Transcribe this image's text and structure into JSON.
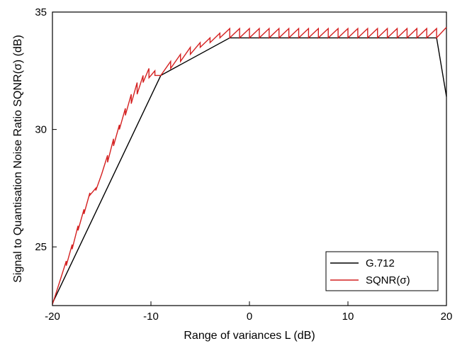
{
  "chart_data": {
    "type": "line",
    "xlabel": "Range of variances L (dB)",
    "ylabel": "Signal to Quantisation Noise Ratio SQNR(σ) (dB)",
    "xlim": [
      -20,
      20
    ],
    "ylim": [
      22.5,
      35
    ],
    "x_ticks": [
      -20,
      -10,
      0,
      10,
      20
    ],
    "y_ticks": [
      25,
      30,
      35
    ],
    "grid": false,
    "legend_position": "bottom-right",
    "series": [
      {
        "name": "G.712",
        "color": "#000000",
        "x": [
          -20,
          -9,
          -2,
          19,
          20
        ],
        "y": [
          22.6,
          32.3,
          33.9,
          33.9,
          31.4
        ]
      },
      {
        "name": "SQNR(σ)",
        "color": "#d42020",
        "x": [
          -20,
          -19.2,
          -18.6,
          -18.6,
          -18.0,
          -18.0,
          -17.4,
          -17.4,
          -16.8,
          -16.8,
          -16.2,
          -16.2,
          -15.6,
          -15.6,
          -15.0,
          -14.4,
          -14.4,
          -13.8,
          -13.8,
          -13.2,
          -13.2,
          -12.6,
          -12.6,
          -12.0,
          -12.0,
          -11.4,
          -11.4,
          -10.8,
          -10.8,
          -10.2,
          -10.2,
          -9.6,
          -9.6,
          -9.0,
          -9.0,
          -8.0,
          -8.0,
          -7.0,
          -7.0,
          -6.0,
          -6.0,
          -5.0,
          -5.0,
          -4.0,
          -4.0,
          -3.0,
          -3.0,
          -2.0,
          -2.0,
          -1.0,
          -1.0,
          0.0,
          0.0,
          1.0,
          1.0,
          2.0,
          2.0,
          3.0,
          3.0,
          4.0,
          4.0,
          5.0,
          5.0,
          6.0,
          6.0,
          7.0,
          7.0,
          8.0,
          8.0,
          9.0,
          9.0,
          10.0,
          10.0,
          11.0,
          11.0,
          12.0,
          12.0,
          13.0,
          13.0,
          14.0,
          14.0,
          15.0,
          15.0,
          16.0,
          16.0,
          17.0,
          17.0,
          18.0,
          18.0,
          19.0,
          19.0,
          20.0
        ],
        "y": [
          22.55,
          23.6,
          24.4,
          24.2,
          25.1,
          24.9,
          25.9,
          25.7,
          26.6,
          26.4,
          27.3,
          27.2,
          27.5,
          27.4,
          28.1,
          28.9,
          28.6,
          29.6,
          29.3,
          30.2,
          30.0,
          30.9,
          30.6,
          31.5,
          31.1,
          32.0,
          31.5,
          32.3,
          32.0,
          32.6,
          32.2,
          32.5,
          32.3,
          32.3,
          32.3,
          32.9,
          32.6,
          33.2,
          32.9,
          33.5,
          33.2,
          33.7,
          33.5,
          33.9,
          33.7,
          34.1,
          33.9,
          34.3,
          33.9,
          34.3,
          33.9,
          34.3,
          33.9,
          34.3,
          33.9,
          34.3,
          33.9,
          34.3,
          33.9,
          34.3,
          33.9,
          34.3,
          33.9,
          34.3,
          33.9,
          34.3,
          33.9,
          34.3,
          33.9,
          34.3,
          33.9,
          34.3,
          33.9,
          34.3,
          33.9,
          34.3,
          33.9,
          34.3,
          33.9,
          34.3,
          33.9,
          34.3,
          33.9,
          34.3,
          33.9,
          34.3,
          33.9,
          34.3,
          33.9,
          34.3,
          33.9,
          34.35
        ]
      }
    ]
  }
}
